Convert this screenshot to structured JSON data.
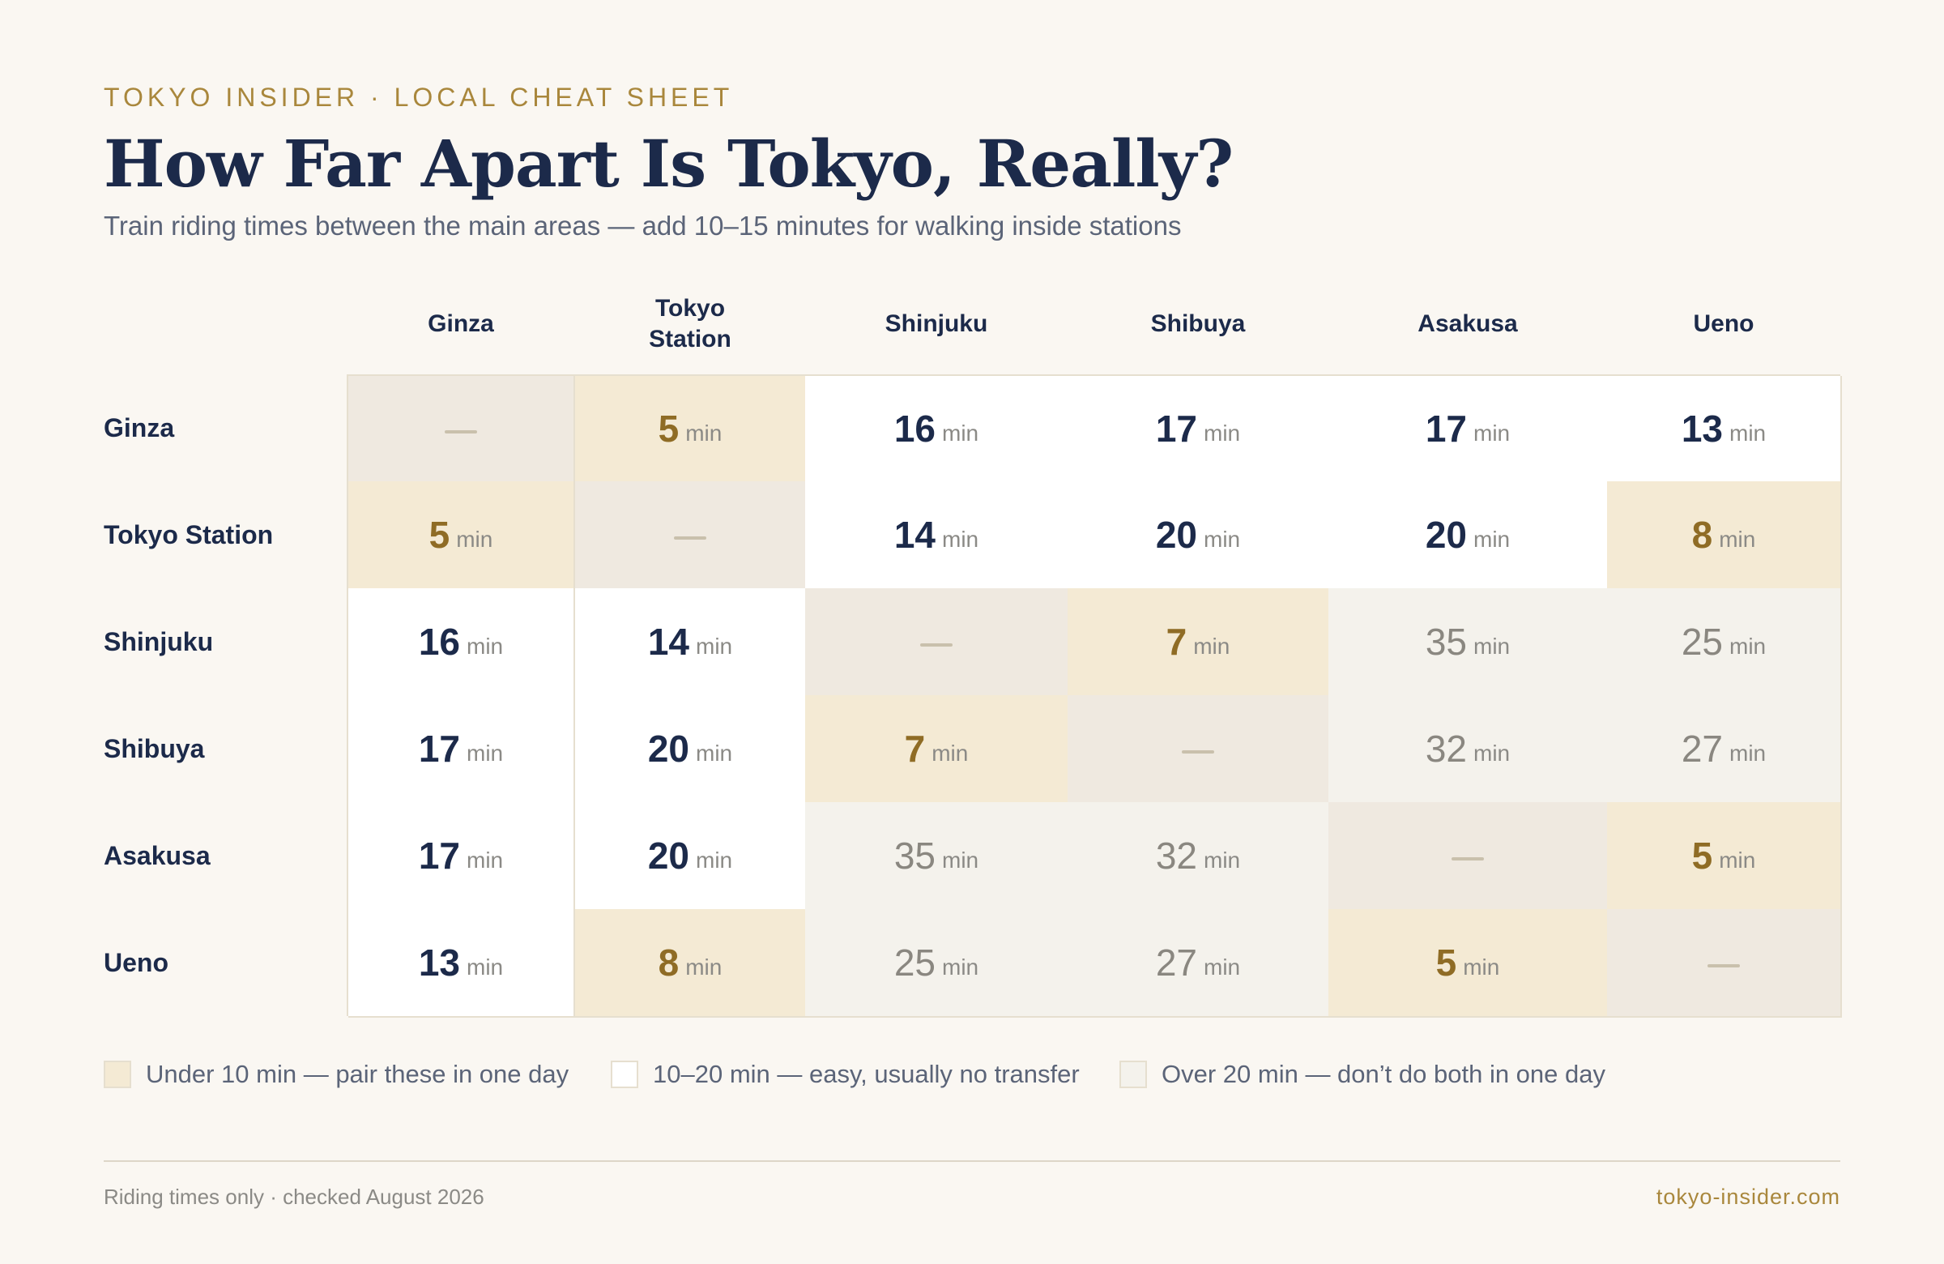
{
  "header": {
    "kicker": "TOKYO INSIDER · LOCAL CHEAT SHEET",
    "title": "How Far Apart Is Tokyo, Really?",
    "subtitle": "Train riding times between the main areas — add 10–15 minutes for walking inside stations"
  },
  "matrix": {
    "columns": [
      {
        "id": "ginza",
        "label": "Ginza"
      },
      {
        "id": "tokyo-station",
        "label": "Tokyo Station"
      },
      {
        "id": "shinjuku",
        "label": "Shinjuku"
      },
      {
        "id": "shibuya",
        "label": "Shibuya"
      },
      {
        "id": "asakusa",
        "label": "Asakusa"
      },
      {
        "id": "ueno",
        "label": "Ueno"
      }
    ],
    "rows": [
      {
        "id": "ginza",
        "label": "Ginza",
        "values": [
          null,
          5,
          16,
          17,
          17,
          13
        ]
      },
      {
        "id": "tokyo-station",
        "label": "Tokyo Station",
        "values": [
          5,
          null,
          14,
          20,
          20,
          8
        ]
      },
      {
        "id": "shinjuku",
        "label": "Shinjuku",
        "values": [
          16,
          14,
          null,
          7,
          35,
          25
        ]
      },
      {
        "id": "shibuya",
        "label": "Shibuya",
        "values": [
          17,
          20,
          7,
          null,
          32,
          27
        ]
      },
      {
        "id": "asakusa",
        "label": "Asakusa",
        "values": [
          17,
          20,
          35,
          32,
          null,
          5
        ]
      },
      {
        "id": "ueno",
        "label": "Ueno",
        "values": [
          13,
          8,
          25,
          27,
          5,
          null
        ]
      }
    ],
    "unit": "min",
    "same_area_mark": "—"
  },
  "legend": [
    {
      "id": "under-10",
      "label": "Under 10 min — pair these in one day",
      "color": "#f4ead4"
    },
    {
      "id": "10-20",
      "label": "10–20 min — easy, usually no transfer",
      "color": "#ffffff"
    },
    {
      "id": "over-20",
      "label": "Over 20 min — don’t do both in one day",
      "color": "#f4f2ec"
    }
  ],
  "colors": {
    "accent": "#a9873c",
    "navy": "#1c2a4a",
    "near_value": "#8f6c25",
    "far_value": "#8a8780",
    "same_area": "#efe9e0"
  },
  "footer": {
    "note": "Riding times only · checked August 2026",
    "site": "tokyo-insider.com"
  }
}
